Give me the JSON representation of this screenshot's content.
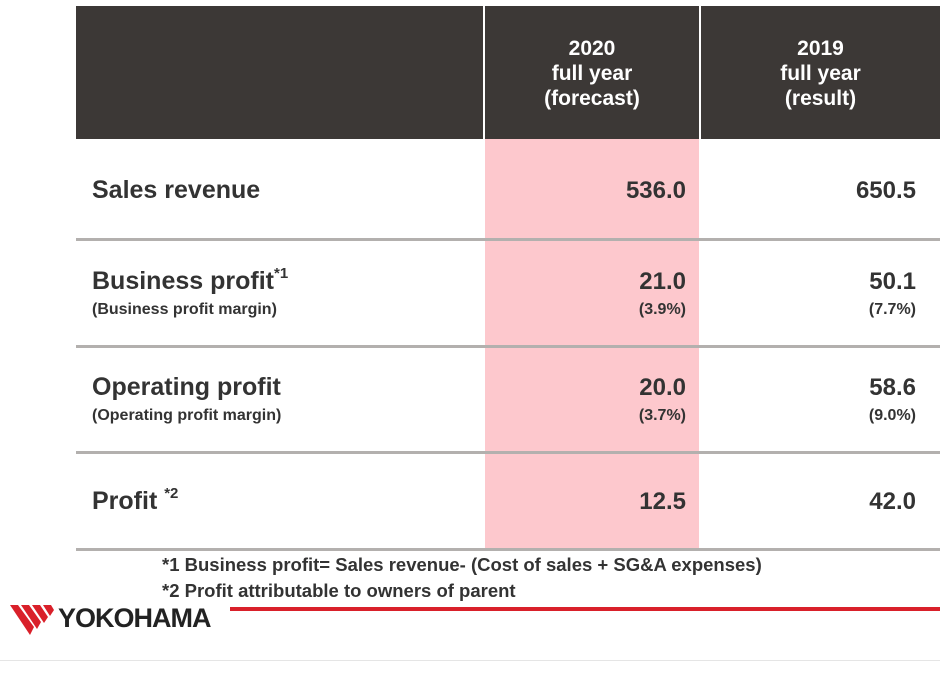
{
  "table": {
    "columns": [
      {
        "line1": "2020",
        "line2": "full year",
        "line3": "(forecast)"
      },
      {
        "line1": "2019",
        "line2": "full year",
        "line3": "(result)"
      }
    ],
    "rows": [
      {
        "label": "Sales revenue",
        "sup": "",
        "sublabel": "",
        "v2020": "536.0",
        "v2020_sub": "",
        "v2019": "650.5",
        "v2019_sub": ""
      },
      {
        "label": "Business profit",
        "sup": "*1",
        "sublabel": "(Business profit margin)",
        "v2020": "21.0",
        "v2020_sub": "(3.9%)",
        "v2019": "50.1",
        "v2019_sub": "(7.7%)"
      },
      {
        "label": "Operating profit",
        "sup": "",
        "sublabel": "(Operating profit margin)",
        "v2020": "20.0",
        "v2020_sub": "(3.7%)",
        "v2019": "58.6",
        "v2019_sub": "(9.0%)"
      },
      {
        "label": "Profit ",
        "sup": "*2",
        "sublabel": "",
        "v2020": "12.5",
        "v2020_sub": "",
        "v2019": "42.0",
        "v2019_sub": ""
      }
    ]
  },
  "notes": {
    "note1": "*1 Business profit= Sales revenue- (Cost of sales + SG&A expenses)",
    "note2": "*2 Profit attributable to owners of parent"
  },
  "brand": {
    "name": "YOKOHAMA",
    "logo_icon": "yokohama-logo-icon",
    "accent": "#d9202a"
  }
}
